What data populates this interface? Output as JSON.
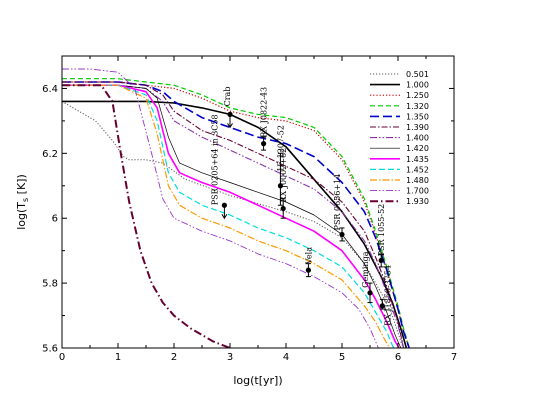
{
  "chart_data": {
    "type": "line",
    "title": "",
    "xlabel": "log(t[yr])",
    "ylabel": "log(T_s [K])",
    "xlim": [
      0,
      7
    ],
    "ylim": [
      5.6,
      6.5
    ],
    "x_ticks": [
      0,
      1,
      2,
      3,
      4,
      5,
      6,
      7
    ],
    "y_ticks": [
      5.6,
      5.8,
      6,
      6.2,
      6.4
    ],
    "y_tick_labels": [
      "5.6",
      "5.8",
      "6",
      "6.2",
      "6.4"
    ],
    "grid": false,
    "legend_position": "top-right",
    "series": [
      {
        "name": "0.501",
        "color": "#555555",
        "dash": "1.2,1.8",
        "width": 1,
        "points": [
          [
            0,
            6.36
          ],
          [
            0.3,
            6.33
          ],
          [
            0.6,
            6.3
          ],
          [
            0.9,
            6.24
          ],
          [
            1.1,
            6.19
          ],
          [
            1.2,
            6.18
          ],
          [
            1.5,
            6.18
          ],
          [
            1.8,
            6.17
          ],
          [
            2.2,
            6.12
          ],
          [
            3,
            6.07
          ],
          [
            4,
            6.02
          ],
          [
            4.5,
            5.99
          ],
          [
            5,
            5.94
          ],
          [
            5.4,
            5.86
          ],
          [
            5.7,
            5.77
          ],
          [
            5.9,
            5.7
          ],
          [
            6.05,
            5.62
          ],
          [
            6.1,
            5.6
          ]
        ]
      },
      {
        "name": "1.000",
        "color": "#000000",
        "dash": "",
        "width": 1.6,
        "points": [
          [
            0,
            6.36
          ],
          [
            0.5,
            6.36
          ],
          [
            1,
            6.36
          ],
          [
            1.5,
            6.36
          ],
          [
            2,
            6.355
          ],
          [
            2.5,
            6.34
          ],
          [
            3,
            6.32
          ],
          [
            3.5,
            6.28
          ],
          [
            4,
            6.22
          ],
          [
            4.5,
            6.12
          ],
          [
            5,
            6.02
          ],
          [
            5.4,
            5.92
          ],
          [
            5.7,
            5.82
          ],
          [
            5.9,
            5.74
          ],
          [
            6.05,
            5.66
          ],
          [
            6.15,
            5.6
          ]
        ]
      },
      {
        "name": "1.250",
        "color": "#cc0000",
        "dash": "1.2,2",
        "width": 1.2,
        "points": [
          [
            0,
            6.42
          ],
          [
            1,
            6.42
          ],
          [
            1.5,
            6.41
          ],
          [
            2,
            6.4
          ],
          [
            2.5,
            6.37
          ],
          [
            3,
            6.33
          ],
          [
            3.5,
            6.31
          ],
          [
            4,
            6.3
          ],
          [
            4.5,
            6.27
          ],
          [
            5,
            6.18
          ],
          [
            5.4,
            6.05
          ],
          [
            5.6,
            5.95
          ],
          [
            5.8,
            5.84
          ],
          [
            6,
            5.72
          ],
          [
            6.1,
            5.65
          ],
          [
            6.2,
            5.6
          ]
        ]
      },
      {
        "name": "1.320",
        "color": "#00cc00",
        "dash": "5,3",
        "width": 1.2,
        "points": [
          [
            0,
            6.43
          ],
          [
            1,
            6.43
          ],
          [
            1.5,
            6.42
          ],
          [
            2,
            6.41
          ],
          [
            2.5,
            6.38
          ],
          [
            3,
            6.34
          ],
          [
            3.5,
            6.32
          ],
          [
            4,
            6.31
          ],
          [
            4.5,
            6.28
          ],
          [
            5,
            6.19
          ],
          [
            5.4,
            6.06
          ],
          [
            5.6,
            5.96
          ],
          [
            5.8,
            5.85
          ],
          [
            6,
            5.73
          ],
          [
            6.1,
            5.66
          ],
          [
            6.2,
            5.6
          ]
        ]
      },
      {
        "name": "1.350",
        "color": "#0000cc",
        "dash": "9,4",
        "width": 1.6,
        "points": [
          [
            0,
            6.42
          ],
          [
            1,
            6.42
          ],
          [
            1.5,
            6.41
          ],
          [
            1.8,
            6.39
          ],
          [
            2,
            6.36
          ],
          [
            2.5,
            6.31
          ],
          [
            3,
            6.28
          ],
          [
            3.5,
            6.25
          ],
          [
            4,
            6.23
          ],
          [
            4.5,
            6.19
          ],
          [
            5,
            6.11
          ],
          [
            5.4,
            6.02
          ],
          [
            5.6,
            5.94
          ],
          [
            5.8,
            5.84
          ],
          [
            6,
            5.72
          ],
          [
            6.1,
            5.65
          ],
          [
            6.2,
            5.6
          ]
        ]
      },
      {
        "name": "1.390",
        "color": "#660033",
        "dash": "6,2,1.5,2",
        "width": 1.1,
        "points": [
          [
            0,
            6.42
          ],
          [
            1,
            6.42
          ],
          [
            1.5,
            6.41
          ],
          [
            1.8,
            6.38
          ],
          [
            2,
            6.33
          ],
          [
            2.5,
            6.27
          ],
          [
            3,
            6.24
          ],
          [
            3.5,
            6.2
          ],
          [
            4,
            6.16
          ],
          [
            4.5,
            6.12
          ],
          [
            5,
            6.05
          ],
          [
            5.4,
            5.96
          ],
          [
            5.6,
            5.88
          ],
          [
            5.8,
            5.79
          ],
          [
            6,
            5.68
          ],
          [
            6.1,
            5.6
          ]
        ]
      },
      {
        "name": "1.400",
        "color": "#8833aa",
        "dash": "7,2,1.5,2,1.5,2",
        "width": 1.1,
        "points": [
          [
            0,
            6.41
          ],
          [
            1,
            6.41
          ],
          [
            1.5,
            6.4
          ],
          [
            1.8,
            6.36
          ],
          [
            2,
            6.3
          ],
          [
            2.5,
            6.25
          ],
          [
            3,
            6.21
          ],
          [
            3.5,
            6.17
          ],
          [
            4,
            6.13
          ],
          [
            4.5,
            6.09
          ],
          [
            5,
            6.02
          ],
          [
            5.4,
            5.93
          ],
          [
            5.6,
            5.86
          ],
          [
            5.8,
            5.77
          ],
          [
            6,
            5.67
          ],
          [
            6.1,
            5.6
          ]
        ]
      },
      {
        "name": "1.420",
        "color": "#000000",
        "dash": "",
        "width": 0.7,
        "points": [
          [
            0,
            6.41
          ],
          [
            1,
            6.41
          ],
          [
            1.5,
            6.4
          ],
          [
            1.7,
            6.37
          ],
          [
            1.9,
            6.25
          ],
          [
            2.1,
            6.17
          ],
          [
            2.5,
            6.14
          ],
          [
            3,
            6.11
          ],
          [
            3.5,
            6.08
          ],
          [
            4,
            6.05
          ],
          [
            4.5,
            6.01
          ],
          [
            5,
            5.95
          ],
          [
            5.4,
            5.86
          ],
          [
            5.6,
            5.79
          ],
          [
            5.8,
            5.71
          ],
          [
            5.95,
            5.64
          ],
          [
            6.05,
            5.6
          ]
        ]
      },
      {
        "name": "1.435",
        "color": "#ff00ff",
        "dash": "",
        "width": 1.6,
        "points": [
          [
            0,
            6.41
          ],
          [
            1,
            6.41
          ],
          [
            1.5,
            6.39
          ],
          [
            1.7,
            6.34
          ],
          [
            1.9,
            6.2
          ],
          [
            2.1,
            6.14
          ],
          [
            2.5,
            6.11
          ],
          [
            3,
            6.08
          ],
          [
            3.5,
            6.04
          ],
          [
            4,
            6
          ],
          [
            4.5,
            5.96
          ],
          [
            5,
            5.9
          ],
          [
            5.4,
            5.81
          ],
          [
            5.6,
            5.75
          ],
          [
            5.8,
            5.68
          ],
          [
            5.95,
            5.62
          ],
          [
            6.02,
            5.6
          ]
        ]
      },
      {
        "name": "1.452",
        "color": "#00dddd",
        "dash": "6,3",
        "width": 1.2,
        "points": [
          [
            0,
            6.41
          ],
          [
            1,
            6.41
          ],
          [
            1.5,
            6.38
          ],
          [
            1.7,
            6.3
          ],
          [
            1.9,
            6.14
          ],
          [
            2.1,
            6.08
          ],
          [
            2.5,
            6.04
          ],
          [
            3,
            6.01
          ],
          [
            3.5,
            5.97
          ],
          [
            4,
            5.94
          ],
          [
            4.5,
            5.9
          ],
          [
            5,
            5.85
          ],
          [
            5.4,
            5.77
          ],
          [
            5.6,
            5.71
          ],
          [
            5.8,
            5.65
          ],
          [
            5.92,
            5.6
          ]
        ]
      },
      {
        "name": "1.480",
        "color": "#ff9900",
        "dash": "7,2,1.5,2",
        "width": 1.2,
        "points": [
          [
            0,
            6.41
          ],
          [
            1,
            6.41
          ],
          [
            1.5,
            6.37
          ],
          [
            1.7,
            6.26
          ],
          [
            1.9,
            6.1
          ],
          [
            2.1,
            6.04
          ],
          [
            2.5,
            6
          ],
          [
            3,
            5.97
          ],
          [
            3.5,
            5.93
          ],
          [
            4,
            5.9
          ],
          [
            4.5,
            5.86
          ],
          [
            5,
            5.81
          ],
          [
            5.4,
            5.73
          ],
          [
            5.6,
            5.68
          ],
          [
            5.75,
            5.63
          ],
          [
            5.85,
            5.6
          ]
        ]
      },
      {
        "name": "1.700",
        "color": "#9933cc",
        "dash": "7,2,1.5,2,1.5,2",
        "width": 0.9,
        "points": [
          [
            0,
            6.46
          ],
          [
            0.5,
            6.46
          ],
          [
            1,
            6.45
          ],
          [
            1.3,
            6.4
          ],
          [
            1.6,
            6.2
          ],
          [
            1.8,
            6.06
          ],
          [
            2,
            6
          ],
          [
            2.5,
            5.96
          ],
          [
            3,
            5.93
          ],
          [
            3.5,
            5.89
          ],
          [
            4,
            5.86
          ],
          [
            4.5,
            5.82
          ],
          [
            5,
            5.77
          ],
          [
            5.3,
            5.72
          ],
          [
            5.5,
            5.66
          ],
          [
            5.65,
            5.6
          ]
        ]
      },
      {
        "name": "1.930",
        "color": "#660033",
        "dash": "8,3,1.5,3",
        "width": 2,
        "points": [
          [
            0,
            6.41
          ],
          [
            0.7,
            6.41
          ],
          [
            0.9,
            6.36
          ],
          [
            1.05,
            6.2
          ],
          [
            1.2,
            6.05
          ],
          [
            1.4,
            5.9
          ],
          [
            1.6,
            5.8
          ],
          [
            1.8,
            5.74
          ],
          [
            2,
            5.7
          ],
          [
            2.3,
            5.66
          ],
          [
            2.7,
            5.62
          ],
          [
            3,
            5.6
          ]
        ]
      }
    ],
    "observations": [
      {
        "name": "Crab",
        "x": 3,
        "y": 6.32,
        "err": [
          6.32,
          6.32
        ],
        "upper_limit": true
      },
      {
        "name": "RX J0822-43",
        "x": 3.6,
        "y": 6.23,
        "err": [
          6.21,
          6.25
        ]
      },
      {
        "name": "1E 1207-52",
        "x": 3.9,
        "y": 6.1,
        "err": [
          6.04,
          6.2
        ]
      },
      {
        "name": "RX J0002+62",
        "x": 3.95,
        "y": 6.03,
        "err": [
          6.0,
          6.06
        ]
      },
      {
        "name": "PSR 0205+64 in 3C58",
        "x": 2.9,
        "y": 6.04,
        "err": [
          6.04,
          6.04
        ],
        "upper_limit": true
      },
      {
        "name": "Vela",
        "x": 4.4,
        "y": 5.84,
        "err": [
          5.82,
          5.86
        ]
      },
      {
        "name": "PSR 0656+14",
        "x": 5,
        "y": 5.95,
        "err": [
          5.93,
          5.97
        ]
      },
      {
        "name": "Geminga",
        "x": 5.5,
        "y": 5.77,
        "err": [
          5.74,
          5.8
        ]
      },
      {
        "name": "PSR 1055-52",
        "x": 5.7,
        "y": 5.87,
        "err": [
          5.85,
          5.89
        ]
      },
      {
        "name": "RX J1856-3754",
        "x": 5.72,
        "y": 5.73,
        "err": [
          5.72,
          5.75
        ]
      }
    ]
  }
}
